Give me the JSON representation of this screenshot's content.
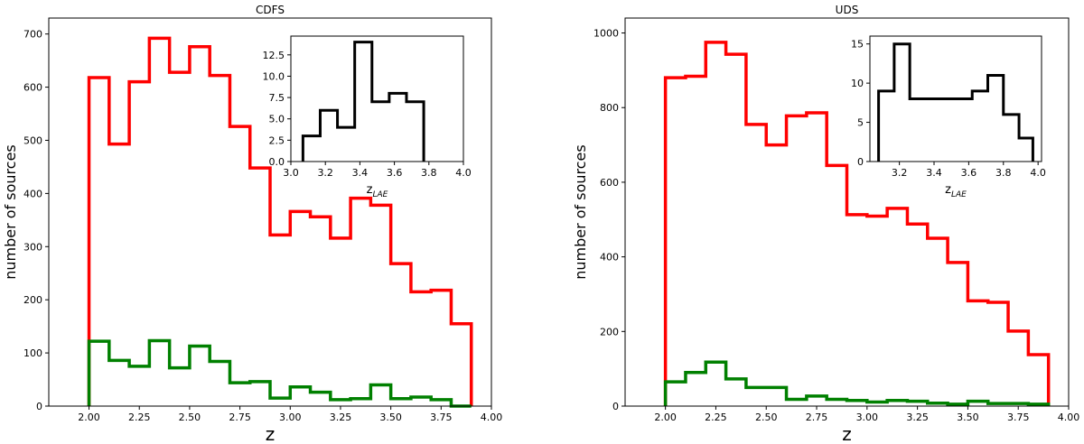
{
  "chart_data": [
    {
      "type": "histogram-step",
      "title": "CDFS",
      "xlabel": "z",
      "ylabel": "number of sources",
      "xlim": [
        1.8,
        4.0
      ],
      "ylim": [
        0,
        730
      ],
      "xticks": [
        2.0,
        2.25,
        2.5,
        2.75,
        3.0,
        3.25,
        3.5,
        3.75,
        4.0
      ],
      "xtick_labels": [
        "2.00",
        "2.25",
        "2.50",
        "2.75",
        "3.00",
        "3.25",
        "3.50",
        "3.75",
        "4.00"
      ],
      "yticks": [
        0,
        100,
        200,
        300,
        400,
        500,
        600,
        700
      ],
      "ytick_labels": [
        "0",
        "100",
        "200",
        "300",
        "400",
        "500",
        "600",
        "700"
      ],
      "bin_edges": [
        2.0,
        2.1,
        2.2,
        2.3,
        2.4,
        2.5,
        2.6,
        2.7,
        2.8,
        2.9,
        3.0,
        3.1,
        3.2,
        3.3,
        3.4,
        3.5,
        3.6,
        3.7,
        3.8,
        3.9
      ],
      "series": [
        {
          "color": "#ff0000",
          "values": [
            618,
            493,
            610,
            692,
            628,
            676,
            622,
            526,
            448,
            322,
            366,
            356,
            316,
            391,
            378,
            268,
            215,
            218,
            155
          ]
        },
        {
          "color": "#008000",
          "values": [
            122,
            86,
            75,
            123,
            72,
            113,
            84,
            44,
            46,
            15,
            36,
            26,
            12,
            14,
            40,
            14,
            17,
            12,
            0
          ]
        }
      ],
      "inset": {
        "xlabel": "z",
        "xlabel_sub": "LAE",
        "xlim": [
          3.0,
          4.0
        ],
        "ylim": [
          0,
          14.7
        ],
        "xticks": [
          3.0,
          3.2,
          3.4,
          3.6,
          3.8,
          4.0
        ],
        "xtick_labels": [
          "3.0",
          "3.2",
          "3.4",
          "3.6",
          "3.8",
          "4.0"
        ],
        "yticks": [
          0,
          2.5,
          5.0,
          7.5,
          10.0,
          12.5
        ],
        "ytick_labels": [
          "0.0",
          "2.5",
          "5.0",
          "7.5",
          "10.0",
          "12.5"
        ],
        "bin_edges": [
          3.07,
          3.17,
          3.27,
          3.37,
          3.47,
          3.57,
          3.67,
          3.77
        ],
        "series": [
          {
            "color": "#000000",
            "values": [
              3,
              6,
              4,
              14,
              7,
              8,
              7
            ]
          }
        ]
      }
    },
    {
      "type": "histogram-step",
      "title": "UDS",
      "xlabel": "z",
      "ylabel": "number of sources",
      "xlim": [
        1.8,
        4.0
      ],
      "ylim": [
        0,
        1040
      ],
      "xticks": [
        2.0,
        2.25,
        2.5,
        2.75,
        3.0,
        3.25,
        3.5,
        3.75,
        4.0
      ],
      "xtick_labels": [
        "2.00",
        "2.25",
        "2.50",
        "2.75",
        "3.00",
        "3.25",
        "3.50",
        "3.75",
        "4.00"
      ],
      "yticks": [
        0,
        200,
        400,
        600,
        800,
        1000
      ],
      "ytick_labels": [
        "0",
        "200",
        "400",
        "600",
        "800",
        "1000"
      ],
      "bin_edges": [
        2.0,
        2.1,
        2.2,
        2.3,
        2.4,
        2.5,
        2.6,
        2.7,
        2.8,
        2.9,
        3.0,
        3.1,
        3.2,
        3.3,
        3.4,
        3.5,
        3.6,
        3.7,
        3.8,
        3.9
      ],
      "series": [
        {
          "color": "#ff0000",
          "values": [
            880,
            884,
            975,
            943,
            755,
            700,
            778,
            786,
            645,
            513,
            509,
            530,
            488,
            450,
            385,
            282,
            278,
            201,
            138
          ]
        },
        {
          "color": "#008000",
          "values": [
            65,
            90,
            118,
            73,
            50,
            50,
            18,
            27,
            18,
            15,
            11,
            15,
            13,
            8,
            5,
            13,
            7,
            7,
            5
          ]
        }
      ],
      "inset": {
        "xlabel": "z",
        "xlabel_sub": "LAE",
        "xlim": [
          3.03,
          4.02
        ],
        "ylim": [
          0,
          16
        ],
        "xticks": [
          3.2,
          3.4,
          3.6,
          3.8,
          4.0
        ],
        "xtick_labels": [
          "3.2",
          "3.4",
          "3.6",
          "3.8",
          "4.0"
        ],
        "yticks": [
          0,
          5,
          10,
          15
        ],
        "ytick_labels": [
          "0",
          "5",
          "10",
          "15"
        ],
        "bin_edges": [
          3.08,
          3.17,
          3.26,
          3.35,
          3.44,
          3.53,
          3.62,
          3.71,
          3.8,
          3.89,
          3.97
        ],
        "series": [
          {
            "color": "#000000",
            "values": [
              9,
              15,
              8,
              8,
              8,
              8,
              9,
              11,
              6,
              3
            ]
          }
        ]
      }
    }
  ]
}
